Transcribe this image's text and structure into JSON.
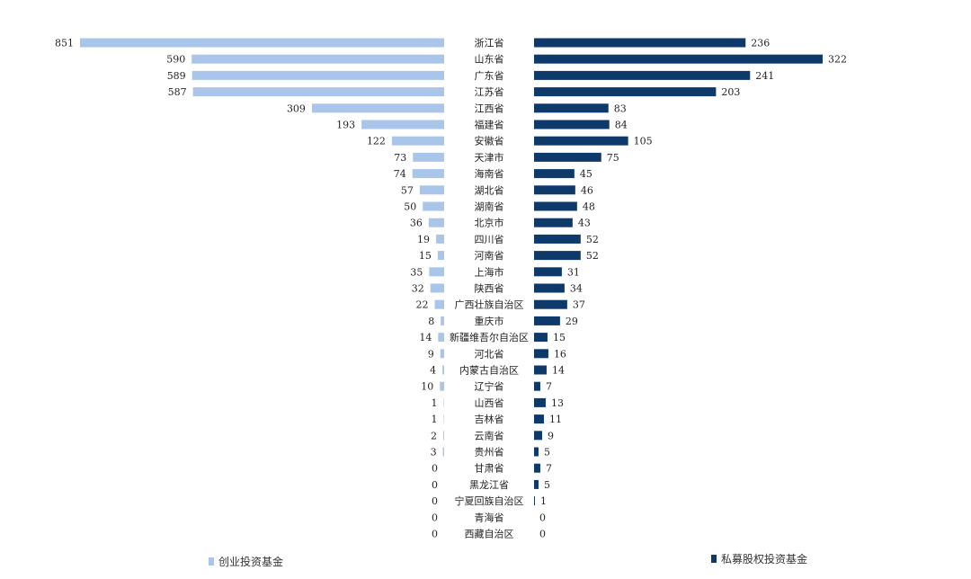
{
  "chart_data": {
    "type": "bar",
    "orientation": "horizontal-butterfly",
    "categories": [
      "浙江省",
      "山东省",
      "广东省",
      "江苏省",
      "江西省",
      "福建省",
      "安徽省",
      "天津市",
      "海南省",
      "湖北省",
      "湖南省",
      "北京市",
      "四川省",
      "河南省",
      "上海市",
      "陕西省",
      "广西壮族自治区",
      "重庆市",
      "新疆维吾尔自治区",
      "河北省",
      "内蒙古自治区",
      "辽宁省",
      "山西省",
      "吉林省",
      "云南省",
      "贵州省",
      "甘肃省",
      "黑龙江省",
      "宁夏回族自治区",
      "青海省",
      "西藏自治区"
    ],
    "series": [
      {
        "name": "创业投资基金",
        "color": "#a9c6ea",
        "side": "left",
        "values": [
          851,
          590,
          589,
          587,
          309,
          193,
          122,
          73,
          74,
          57,
          50,
          36,
          19,
          15,
          35,
          32,
          22,
          8,
          14,
          9,
          4,
          10,
          1,
          1,
          2,
          3,
          0,
          0,
          0,
          0,
          0
        ]
      },
      {
        "name": "私募股权投资基金",
        "color": "#0d3a6b",
        "side": "right",
        "values": [
          236,
          322,
          241,
          203,
          83,
          84,
          105,
          75,
          45,
          46,
          48,
          43,
          52,
          52,
          31,
          34,
          37,
          29,
          15,
          16,
          14,
          7,
          13,
          11,
          9,
          5,
          7,
          5,
          1,
          0,
          0
        ]
      }
    ],
    "left_axis_max": 851,
    "right_axis_max": 322,
    "legend": "bottom",
    "title": "",
    "xlabel": "",
    "ylabel": ""
  }
}
